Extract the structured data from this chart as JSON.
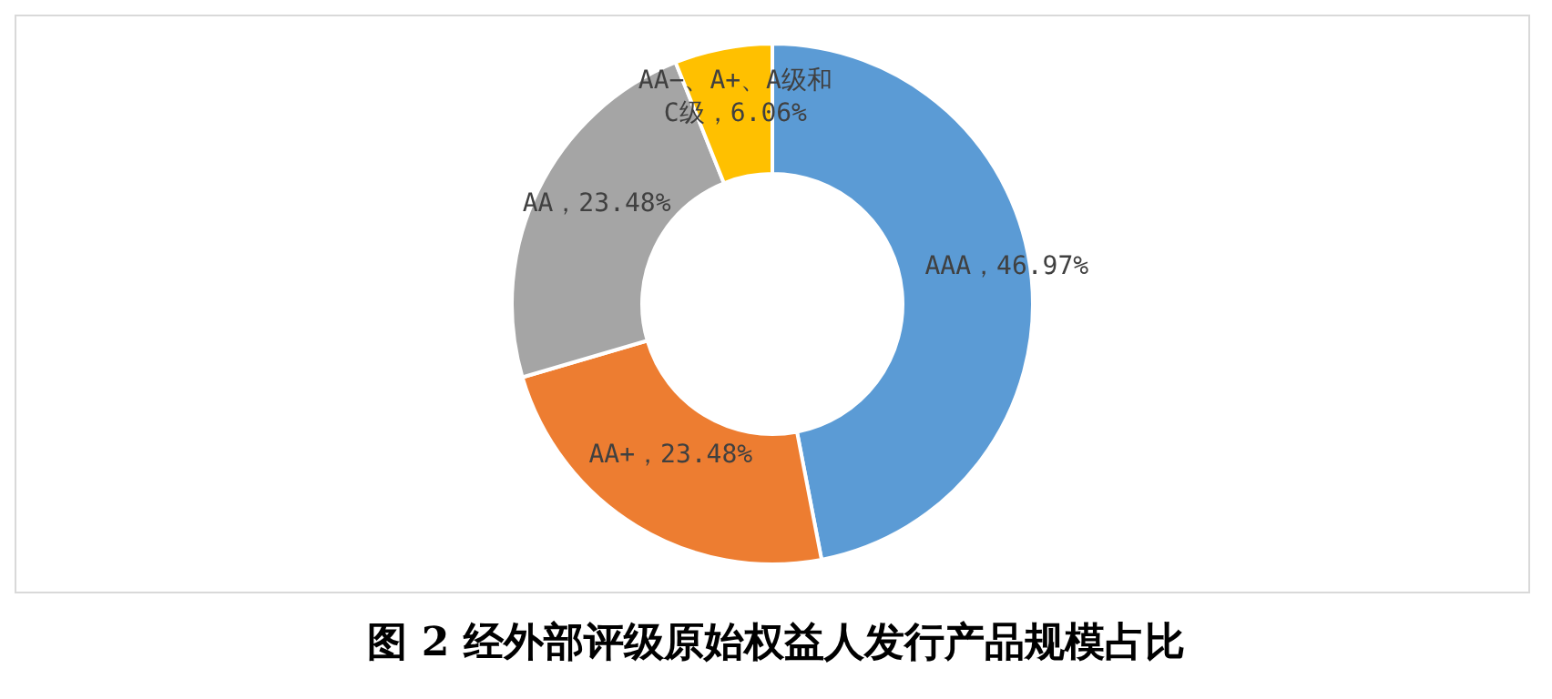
{
  "chart_data": {
    "type": "donut",
    "title": "图 2 经外部评级原始权益人发行产品规模占比",
    "categories": [
      "AAA",
      "AA+",
      "AA",
      "AA−、A+、A级和C级"
    ],
    "values": [
      46.97,
      23.48,
      23.48,
      6.06
    ],
    "colors": [
      "#5b9bd5",
      "#ed7d31",
      "#a5a5a5",
      "#ffc000"
    ],
    "value_labels": [
      "，46.97%",
      "，23.48%",
      "，23.48%",
      "，6.06%"
    ],
    "legend": false
  }
}
